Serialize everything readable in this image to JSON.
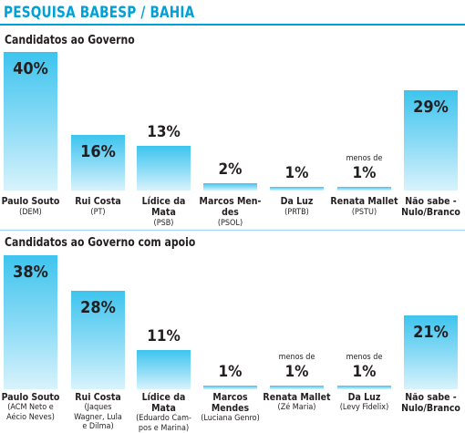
{
  "header": {
    "title": "PESQUISA BABESP / BAHIA"
  },
  "chart_data": [
    {
      "type": "bar",
      "title": "Candidatos ao Governo",
      "categories": [
        "Paulo Souto",
        "Rui Costa",
        "Lídice da Mata",
        "Marcos Mendes",
        "Da Luz",
        "Renata Mallet",
        "Não sabe - Nulo/Branco"
      ],
      "name_labels": [
        "Paulo Souto",
        "Rui Costa",
        "Lídice da\nMata",
        "Marcos Men-\ndes",
        "Da Luz",
        "Renata Mallet",
        "Não sabe -\nNulo/Branco"
      ],
      "party_labels": [
        "(DEM)",
        "(PT)",
        "(PSB)",
        "(PSOL)",
        "(PRTB)",
        "(PSTU)",
        ""
      ],
      "value_labels": [
        "40%",
        "16%",
        "13%",
        "2%",
        "1%",
        "1%",
        "29%"
      ],
      "prefix_labels": [
        "",
        "",
        "",
        "",
        "",
        "menos de",
        ""
      ],
      "values": [
        40,
        16,
        13,
        2,
        1,
        1,
        29
      ],
      "ylim": [
        0,
        40
      ],
      "grid": false,
      "legend": "none",
      "bar_color": "#3ec4ee"
    },
    {
      "type": "bar",
      "title": "Candidatos ao Governo com apoio",
      "categories": [
        "Paulo Souto",
        "Rui Costa",
        "Lídice da Mata",
        "Marcos Mendes",
        "Renata Mallet",
        "Da Luz",
        "Não sabe - Nulo/Branco"
      ],
      "name_labels": [
        "Paulo Souto",
        "Rui Costa",
        "Lídice da\nMata",
        "Marcos\nMendes",
        "Renata Mallet",
        "Da Luz",
        "Não sabe -\nNulo/Branco"
      ],
      "party_labels": [
        "(ACM Neto e\nAécio Neves)",
        "(Jaques\nWagner, Lula\ne Dilma)",
        "(Eduardo Cam-\npos e Marina)",
        "(Luciana Genro)",
        "(Zé Maria)",
        "(Levy Fidelix)",
        ""
      ],
      "value_labels": [
        "38%",
        "28%",
        "11%",
        "1%",
        "1%",
        "1%",
        "21%"
      ],
      "prefix_labels": [
        "",
        "",
        "",
        "",
        "menos de",
        "menos de",
        ""
      ],
      "values": [
        38,
        28,
        11,
        1,
        1,
        1,
        21
      ],
      "ylim": [
        0,
        38
      ],
      "grid": false,
      "legend": "none",
      "bar_color": "#3ec4ee"
    }
  ]
}
